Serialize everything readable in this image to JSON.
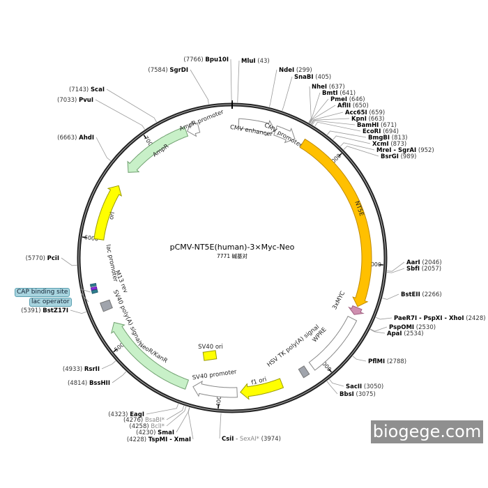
{
  "plasmid": {
    "name": "pCMV-NT5E(human)-3×Myc-Neo",
    "length_label": "7771 碱基对",
    "length": 7771
  },
  "ticks": [
    "1000",
    "2000",
    "3000",
    "4000",
    "5000",
    "6000",
    "7000"
  ],
  "features": [
    {
      "name": "CMV enhancer",
      "start": 60,
      "end": 400,
      "dir": "forward",
      "fill": "#ffffff",
      "stroke": "#888888"
    },
    {
      "name": "CMV promoter",
      "start": 405,
      "end": 600,
      "dir": "forward",
      "fill": "#ffffff",
      "stroke": "#888888"
    },
    {
      "name": "NT5E",
      "start": 680,
      "end": 2400,
      "dir": "forward",
      "fill": "#ffc000",
      "stroke": "#c08a00"
    },
    {
      "name": "3xMYC",
      "start": 2410,
      "end": 2480,
      "dir": "forward",
      "fill": "#cf8fb0",
      "stroke": "#a06080"
    },
    {
      "name": "WPRE",
      "start": 2520,
      "end": 3100,
      "dir": "none",
      "fill": "#ffffff",
      "stroke": "#888888"
    },
    {
      "name": "HSV TK poly(A) signal",
      "start": 3160,
      "end": 3220,
      "dir": "none",
      "fill": "#a0a4ac",
      "stroke": "#777777"
    },
    {
      "name": "f1 ori",
      "start": 3420,
      "end": 3810,
      "dir": "forward",
      "fill": "#ffff00",
      "stroke": "#999900"
    },
    {
      "name": "SV40 promoter",
      "start": 3840,
      "end": 4250,
      "dir": "forward",
      "fill": "#ffffff",
      "stroke": "#888888"
    },
    {
      "name": "NeoR/KanR",
      "start": 4310,
      "end": 5210,
      "dir": "forward",
      "fill": "#c8f0c8",
      "stroke": "#70a070"
    },
    {
      "name": "SV40 poly(A) signal",
      "start": 5340,
      "end": 5420,
      "dir": "none",
      "fill": "#a0a4ac",
      "stroke": "#777777"
    },
    {
      "name": "M13 rev",
      "start": 5520,
      "end": 5545,
      "dir": "none",
      "fill": "#2f7f8f",
      "stroke": "#1f5f6f"
    },
    {
      "name": "lac operator",
      "start": 5550,
      "end": 5570,
      "dir": "none",
      "fill": "#8a2be2",
      "stroke": "#5a1ba2"
    },
    {
      "name": "CAP binding site",
      "start": 5580,
      "end": 5600,
      "dir": "none",
      "fill": "#2f7f8f",
      "stroke": "#1f5f6f"
    },
    {
      "name": "lac promoter",
      "start": 5600,
      "end": 5700,
      "dir": "label",
      "fill": "#ffffff",
      "stroke": "#ffffff"
    },
    {
      "name": "ori",
      "start": 6000,
      "end": 6530,
      "dir": "forward",
      "fill": "#ffff00",
      "stroke": "#999900"
    },
    {
      "name": "AmpR",
      "start": 6680,
      "end": 7340,
      "dir": "reverse",
      "fill": "#c8f0c8",
      "stroke": "#70a070"
    },
    {
      "name": "AmpR promoter",
      "start": 7350,
      "end": 7460,
      "dir": "reverse",
      "fill": "#ffffff",
      "stroke": "#888888"
    }
  ],
  "sv40_ori": {
    "name": "SV40 ori",
    "fill": "#ffff00"
  },
  "sites": [
    {
      "name": "Bpu10I",
      "pos": "7766",
      "side": "left"
    },
    {
      "name": "MluI",
      "pos": "43",
      "side": "right"
    },
    {
      "name": "NdeI",
      "pos": "299",
      "side": "right"
    },
    {
      "name": "SnaBI",
      "pos": "405",
      "side": "right"
    },
    {
      "name": "NheI",
      "pos": "637",
      "side": "right"
    },
    {
      "name": "BmtI",
      "pos": "641",
      "side": "right"
    },
    {
      "name": "PmeI",
      "pos": "646",
      "side": "right"
    },
    {
      "name": "AflII",
      "pos": "650",
      "side": "right"
    },
    {
      "name": "Acc65I",
      "pos": "659",
      "side": "right"
    },
    {
      "name": "KpnI",
      "pos": "663",
      "side": "right"
    },
    {
      "name": "BamHI",
      "pos": "671",
      "side": "right"
    },
    {
      "name": "EcoRI",
      "pos": "694",
      "side": "right"
    },
    {
      "name": "BmgBI",
      "pos": "813",
      "side": "right"
    },
    {
      "name": "XcmI",
      "pos": "873",
      "side": "right"
    },
    {
      "name": "MreI - SgrAI",
      "pos": "952",
      "side": "right"
    },
    {
      "name": "BsrGI",
      "pos": "989",
      "side": "right"
    },
    {
      "name": "AarI",
      "pos": "2046",
      "side": "right"
    },
    {
      "name": "SbfI",
      "pos": "2057",
      "side": "right"
    },
    {
      "name": "BstEII",
      "pos": "2266",
      "side": "right"
    },
    {
      "name": "PaeR7I - PspXI - XhoI",
      "pos": "2428",
      "side": "right"
    },
    {
      "name": "PspOMI",
      "pos": "2530",
      "side": "right"
    },
    {
      "name": "ApaI",
      "pos": "2534",
      "side": "right"
    },
    {
      "name": "PflMI",
      "pos": "2788",
      "side": "right"
    },
    {
      "name": "SacII",
      "pos": "3050",
      "side": "right"
    },
    {
      "name": "BbsI",
      "pos": "3075",
      "side": "right"
    },
    {
      "name": "CsiI",
      "name2": "SexAI*",
      "pos": "3974",
      "side": "right"
    },
    {
      "name": "TspMI - XmaI",
      "pos": "4228",
      "side": "left"
    },
    {
      "name": "SmaI",
      "pos": "4230",
      "side": "left"
    },
    {
      "name": "BclI*",
      "pos": "4258",
      "side": "left",
      "star": true
    },
    {
      "name": "BsaBI*",
      "pos": "4276",
      "side": "left",
      "star": true
    },
    {
      "name": "EagI",
      "pos": "4323",
      "side": "left"
    },
    {
      "name": "BssHII",
      "pos": "4814",
      "side": "left"
    },
    {
      "name": "RsrII",
      "pos": "4933",
      "side": "left"
    },
    {
      "name": "BstZ17I",
      "pos": "5391",
      "side": "left"
    },
    {
      "name": "PciI",
      "pos": "5770",
      "side": "left"
    },
    {
      "name": "AhdI",
      "pos": "6663",
      "side": "left"
    },
    {
      "name": "PvuI",
      "pos": "7033",
      "side": "left"
    },
    {
      "name": "ScaI",
      "pos": "7143",
      "side": "left"
    },
    {
      "name": "SgrDI",
      "pos": "7584",
      "side": "left"
    }
  ],
  "boxed_labels": {
    "cap": "CAP binding site",
    "lac": "lac operator"
  },
  "watermark": "biogege.com"
}
